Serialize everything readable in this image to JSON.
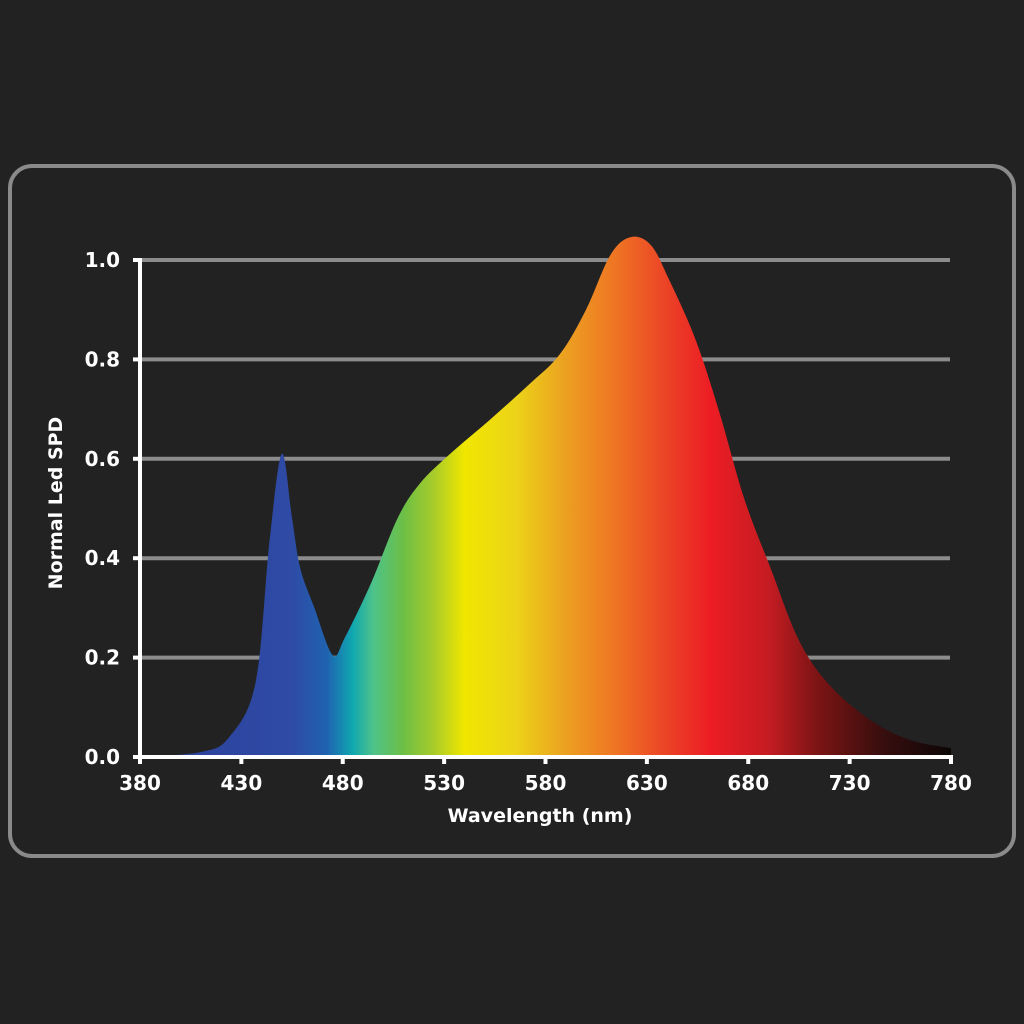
{
  "chart_data": {
    "type": "area",
    "title": "",
    "xlabel": "Wavelength (nm)",
    "ylabel": "Normal Led SPD",
    "xlim": [
      380,
      780
    ],
    "ylim": [
      0.0,
      1.0
    ],
    "x_ticks": [
      "380",
      "430",
      "480",
      "530",
      "580",
      "630",
      "680",
      "730",
      "780"
    ],
    "y_ticks": [
      "0.0",
      "0.2",
      "0.4",
      "0.6",
      "0.8",
      "1.0"
    ],
    "grid": "horizontal",
    "legend": null,
    "series": [
      {
        "name": "Normal LED SPD",
        "fill": "visible-spectrum gradient",
        "x": [
          380,
          410,
          424,
          437,
          444,
          450,
          455,
          459,
          466,
          475,
          481,
          494,
          507,
          518,
          533,
          553,
          572,
          587,
          600,
          612,
          622,
          632,
          641,
          654,
          666,
          678,
          691,
          705,
          720,
          740,
          760,
          780
        ],
        "values": [
          0.0,
          0.01,
          0.04,
          0.15,
          0.44,
          0.61,
          0.48,
          0.38,
          0.3,
          0.205,
          0.24,
          0.35,
          0.48,
          0.55,
          0.61,
          0.68,
          0.75,
          0.81,
          0.9,
          1.01,
          1.046,
          1.03,
          0.96,
          0.84,
          0.69,
          0.52,
          0.38,
          0.235,
          0.145,
          0.075,
          0.034,
          0.018
        ]
      }
    ],
    "annotations": []
  },
  "colors": {
    "background": "#222222",
    "frame_border": "#8a8a8a",
    "gridline": "#8c8c8c",
    "axis": "#ffffff",
    "text": "#ffffff",
    "spectrum_stops": [
      {
        "nm": 380,
        "color": "#2a3f9a"
      },
      {
        "nm": 455,
        "color": "#2f4ba5"
      },
      {
        "nm": 472,
        "color": "#1f62b0"
      },
      {
        "nm": 485,
        "color": "#10a8b0"
      },
      {
        "nm": 495,
        "color": "#4dc28a"
      },
      {
        "nm": 510,
        "color": "#6cbf45"
      },
      {
        "nm": 525,
        "color": "#a8cc2a"
      },
      {
        "nm": 540,
        "color": "#f0e600"
      },
      {
        "nm": 565,
        "color": "#ecd418"
      },
      {
        "nm": 590,
        "color": "#eca021"
      },
      {
        "nm": 615,
        "color": "#ef7424"
      },
      {
        "nm": 640,
        "color": "#eb4226"
      },
      {
        "nm": 662,
        "color": "#ec1c24"
      },
      {
        "nm": 690,
        "color": "#c41c22"
      },
      {
        "nm": 715,
        "color": "#7a1414"
      },
      {
        "nm": 745,
        "color": "#3a0e0e"
      },
      {
        "nm": 780,
        "color": "#0c0606"
      }
    ]
  }
}
